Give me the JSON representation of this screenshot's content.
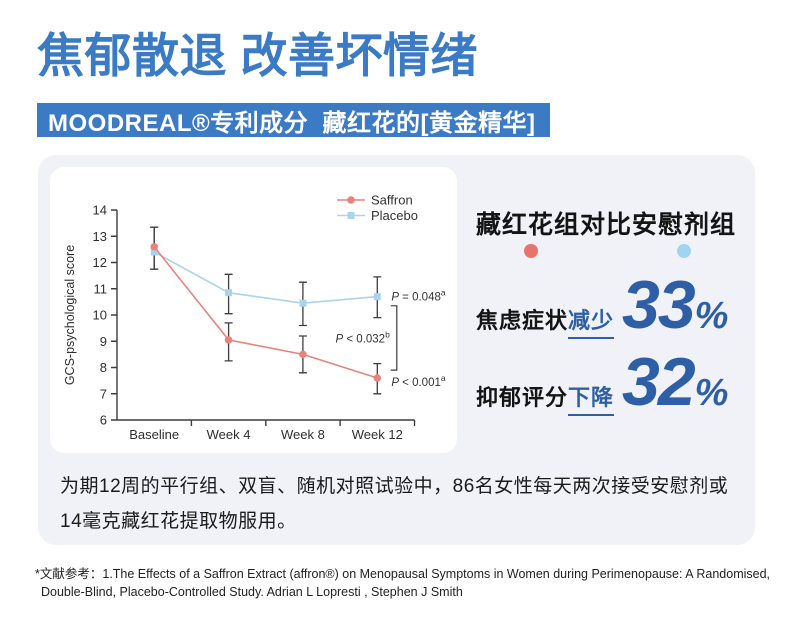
{
  "header": {
    "title": "焦郁散退 改善坏情绪",
    "subtitle": "MOODREAL®专利成分  藏红花的[黄金精华]"
  },
  "chart_data": {
    "type": "line",
    "categories": [
      "Baseline",
      "Week 4",
      "Week 8",
      "Week 12"
    ],
    "ylabel": "GCS-psychological score",
    "ylim": [
      6,
      14
    ],
    "ytick_step": 1,
    "grid": false,
    "legend_position": "top-right",
    "series": [
      {
        "name": "Saffron",
        "color": "#E8837C",
        "marker": "circle",
        "values": [
          12.6,
          9.05,
          8.5,
          7.6
        ],
        "err_up": [
          0.75,
          0.65,
          0.7,
          0.55
        ],
        "err_dn": [
          0.85,
          0.8,
          0.7,
          0.6
        ]
      },
      {
        "name": "Placebo",
        "color": "#A9D4EC",
        "marker": "square",
        "values": [
          12.4,
          10.85,
          10.45,
          10.7
        ],
        "err_up": [
          0.95,
          0.7,
          0.8,
          0.75
        ],
        "err_dn": [
          0.65,
          0.8,
          0.85,
          0.8
        ]
      }
    ],
    "annotations": [
      {
        "text": "P = 0.048",
        "sup": "a",
        "dx": 14,
        "y": 10.55,
        "anchor": "start"
      },
      {
        "text": "P < 0.032",
        "sup": "b",
        "dx": 12.5,
        "y": 8.95,
        "anchor": "end"
      },
      {
        "text": "P < 0.001",
        "sup": "a",
        "dx": 14,
        "y": 7.3,
        "anchor": "start"
      }
    ],
    "bracket": {
      "dx": 19.5,
      "y_top": 10.35,
      "y_bot": 7.9,
      "tick": 6
    }
  },
  "comparison": {
    "title": "藏红花组对比安慰剂组",
    "legend_dots": [
      {
        "name": "saffron",
        "color": "#E8736E"
      },
      {
        "name": "placebo",
        "color": "#A0D4F1"
      }
    ],
    "stats": [
      {
        "label": "焦虑症状",
        "verb": "减少",
        "value": "33",
        "unit": "%"
      },
      {
        "label": "抑郁评分",
        "verb": "下降",
        "value": "32",
        "unit": "%"
      }
    ]
  },
  "study_note": {
    "lines": [
      "为期12周的平行组、双盲、随机对照试验中，86名女性每天两次接受安慰剂或",
      "14毫克藏红花提取物服用。"
    ]
  },
  "reference": {
    "lines": [
      "*文献参考：1.The Effects of a Saffron Extract (affron®) on Menopausal Symptoms in Women during Perimenopause: A Randomised,",
      "Double-Blind, Placebo-Controlled Study. Adrian L Lopresti , Stephen J Smith"
    ]
  },
  "colors": {
    "accent_blue": "#3B7AC5",
    "stat_blue": "#2E5FA6",
    "panel_bg": "#F0F2F7",
    "saffron": "#E8837C",
    "placebo": "#A9D4EC",
    "axis": "#3D3D3D"
  }
}
